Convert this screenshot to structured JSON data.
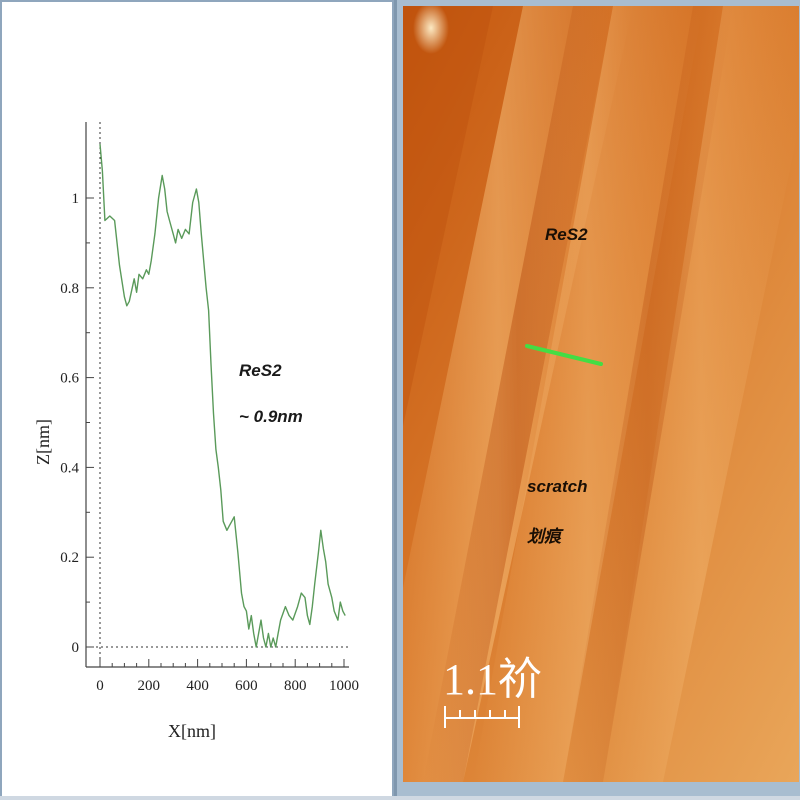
{
  "chart_data": {
    "type": "line",
    "xlabel": "X[nm]",
    "ylabel": "Z[nm]",
    "xlim": [
      -10,
      1020
    ],
    "ylim": [
      -0.02,
      1.15
    ],
    "x_ticks": [
      "0",
      "200",
      "400",
      "600",
      "800",
      "1000"
    ],
    "y_ticks": [
      "0",
      "0.2",
      "0.4",
      "0.6",
      "0.8",
      "1"
    ],
    "annotations": [
      "ReS2",
      "~ 0.9nm"
    ],
    "line_color": "#5a9a5a",
    "series": [
      {
        "x": [
          0,
          10,
          20,
          40,
          60,
          80,
          100,
          110,
          120,
          140,
          150,
          160,
          175,
          190,
          200,
          210,
          225,
          240,
          255,
          265,
          275,
          285,
          300,
          310,
          320,
          335,
          350,
          365,
          380,
          395,
          405,
          415,
          425,
          435,
          445,
          455,
          465,
          475,
          485,
          495,
          505,
          520,
          530,
          540,
          550,
          565,
          580,
          590,
          600,
          610,
          620,
          630,
          640,
          650,
          660,
          670,
          680,
          690,
          700,
          710,
          720,
          730,
          740,
          760,
          775,
          790,
          810,
          825,
          840,
          850,
          860,
          870,
          880,
          895,
          905,
          915,
          925,
          935,
          950,
          960,
          975,
          985,
          995,
          1005
        ],
        "y": [
          1.12,
          1.06,
          0.95,
          0.96,
          0.95,
          0.85,
          0.78,
          0.76,
          0.77,
          0.82,
          0.79,
          0.83,
          0.82,
          0.84,
          0.83,
          0.86,
          0.92,
          1.0,
          1.05,
          1.02,
          0.97,
          0.95,
          0.92,
          0.9,
          0.93,
          0.91,
          0.93,
          0.92,
          0.99,
          1.02,
          0.99,
          0.92,
          0.86,
          0.8,
          0.75,
          0.63,
          0.52,
          0.44,
          0.4,
          0.35,
          0.28,
          0.26,
          0.27,
          0.28,
          0.29,
          0.21,
          0.12,
          0.09,
          0.08,
          0.04,
          0.07,
          0.03,
          0.0,
          0.03,
          0.06,
          0.02,
          0.0,
          0.03,
          0.0,
          0.02,
          0.0,
          0.03,
          0.06,
          0.09,
          0.07,
          0.06,
          0.09,
          0.12,
          0.11,
          0.07,
          0.05,
          0.09,
          0.14,
          0.21,
          0.26,
          0.22,
          0.19,
          0.14,
          0.11,
          0.08,
          0.06,
          0.1,
          0.08,
          0.07
        ]
      }
    ]
  },
  "afm_image": {
    "annotations": [
      "ReS2",
      "scratch",
      "划痕"
    ],
    "scale_label": "1.1祄",
    "profile_line_color": "#44dd44"
  }
}
